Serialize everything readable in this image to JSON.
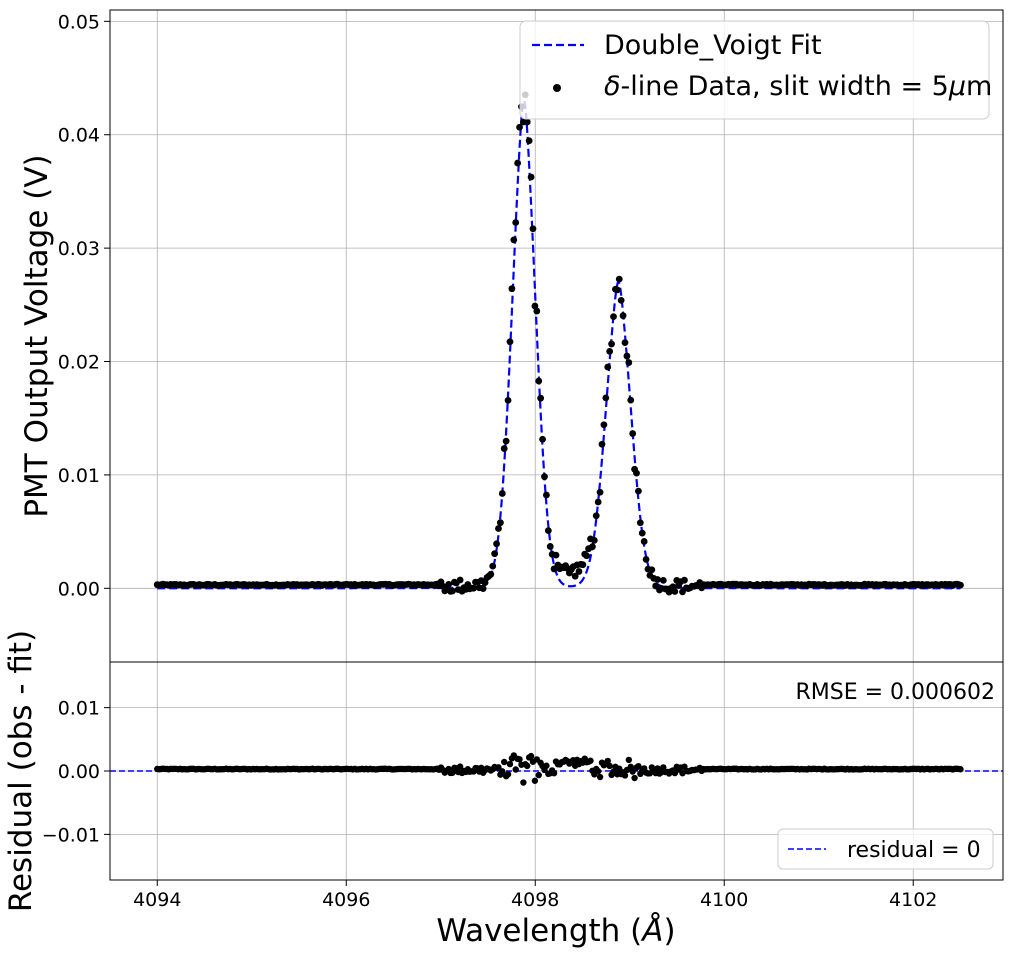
{
  "chart_data": [
    {
      "type": "line+scatter",
      "panel": "main",
      "ylabel": "PMT Output Voltage (V)",
      "xlim": [
        4093.5,
        4102.95
      ],
      "ylim": [
        -0.0065,
        0.051
      ],
      "xticks": [
        4094,
        4096,
        4098,
        4100,
        4102
      ],
      "yticks": [
        0.0,
        0.01,
        0.02,
        0.03,
        0.04,
        0.05
      ],
      "ytick_labels": [
        "0.00",
        "0.01",
        "0.02",
        "0.03",
        "0.04",
        "0.05"
      ],
      "grid": true,
      "legend_position": "top-right",
      "model": {
        "name": "Double_Voigt Fit",
        "color": "#0000ff",
        "style": "dashed",
        "peaks": [
          {
            "center": 4097.88,
            "amplitude": 0.043,
            "sigma": 0.13,
            "gamma": 0.06
          },
          {
            "center": 4098.88,
            "amplitude": 0.027,
            "sigma": 0.14,
            "gamma": 0.06
          }
        ],
        "baseline": 0.0,
        "x_range": [
          4094.0,
          4102.5
        ]
      },
      "data_series": {
        "name_math": "δ",
        "name_rest": "-line Data, slit width = 5",
        "name_unit_math": "μ",
        "name_unit": "m",
        "color": "#000000",
        "x_range": [
          4094.0,
          4102.5
        ],
        "baseline": 0.0003,
        "point_count": 420,
        "peak_max": 0.0441
      }
    },
    {
      "type": "scatter",
      "panel": "residual",
      "xlabel_text": "Wavelength (",
      "xlabel_math": "Å",
      "xlabel_close": ")",
      "ylabel": "Residual (obs - fit)",
      "xlim": [
        4093.5,
        4102.95
      ],
      "ylim": [
        -0.0172,
        0.0172
      ],
      "xticks": [
        4094,
        4096,
        4098,
        4100,
        4102
      ],
      "xtick_labels": [
        "4094",
        "4096",
        "4098",
        "4100",
        "4102"
      ],
      "yticks": [
        -0.01,
        0.0,
        0.01
      ],
      "ytick_labels": [
        "−0.01",
        "0.00",
        "0.01"
      ],
      "grid": true,
      "legend_position": "bottom-right",
      "zero_line": {
        "name": "residual = 0",
        "color": "#0000ff",
        "style": "dashed",
        "y": 0
      },
      "annotation": "RMSE = 0.000602",
      "residual_range": [
        -0.003,
        0.003
      ]
    }
  ]
}
